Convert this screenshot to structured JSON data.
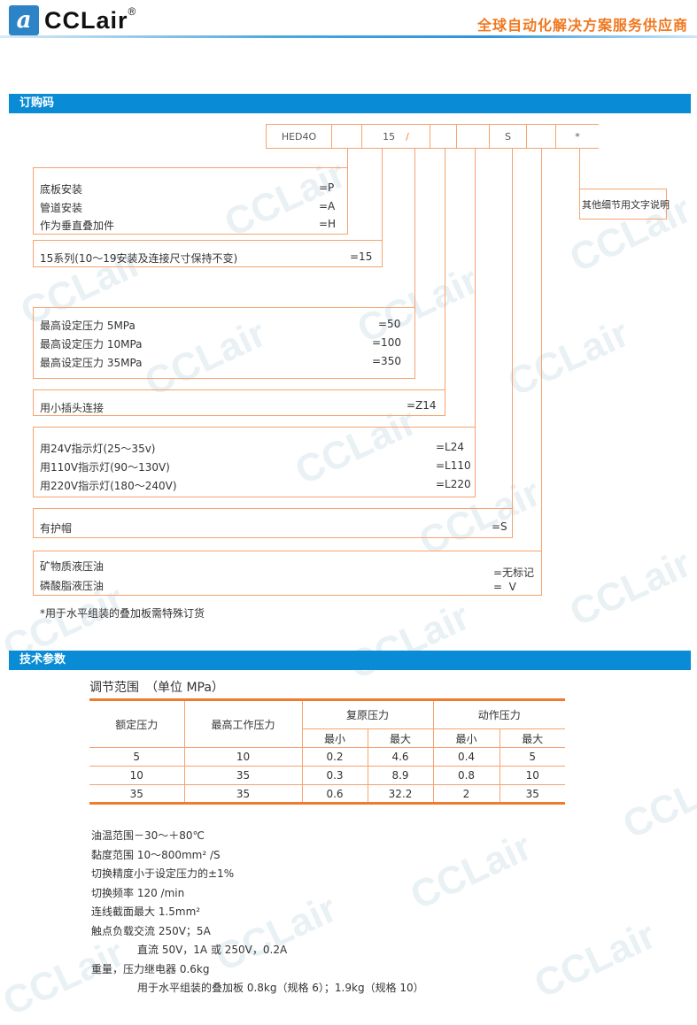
{
  "header": {
    "logo_text": "CCLair",
    "logo_mark": "a",
    "registered": "®",
    "slogan": "全球自动化解决方案服务供应商",
    "watermark": "CCLair"
  },
  "order_section": {
    "title": "订购码",
    "code_cells": [
      "HED4O",
      "",
      "15",
      "/",
      "",
      "",
      "S",
      "",
      "*"
    ],
    "other_details": "其他细节用文字说明",
    "groups": [
      {
        "items": [
          {
            "label": "底板安装",
            "code": "=P"
          },
          {
            "label": "管道安装",
            "code": "=A"
          },
          {
            "label": "作为垂直叠加件",
            "code": "=H"
          }
        ]
      },
      {
        "items": [
          {
            "label": "15系列(10～19安装及连接尺寸保持不变)",
            "code": "=15"
          }
        ]
      },
      {
        "items": [
          {
            "label": "最高设定压力 5MPa",
            "code": "=50"
          },
          {
            "label": "最高设定压力 10MPa",
            "code": "=100"
          },
          {
            "label": "最高设定压力 35MPa",
            "code": "=350"
          }
        ]
      },
      {
        "items": [
          {
            "label": "用小插头连接",
            "code": "=Z14"
          }
        ]
      },
      {
        "items": [
          {
            "label": "用24V指示灯(25～35v)",
            "code": "=L24"
          },
          {
            "label": "用110V指示灯(90～130V)",
            "code": "=L110"
          },
          {
            "label": "用220V指示灯(180～240V)",
            "code": "=L220"
          }
        ]
      },
      {
        "items": [
          {
            "label": "有护帽",
            "code": "=S"
          }
        ]
      },
      {
        "items": [
          {
            "label": "矿物质液压油",
            "code": "=无标记"
          },
          {
            "label": "磷酸脂液压油",
            "code": "=  V"
          }
        ]
      }
    ],
    "footnote": "*用于水平组装的叠加板需特殊订货"
  },
  "tech_section": {
    "title": "技术参数",
    "table_title": "调节范围　（单位 MPa）",
    "headers": {
      "rated": "额定压力",
      "max_work": "最高工作压力",
      "reset": "复原压力",
      "action": "动作压力",
      "min": "最小",
      "max": "最大"
    },
    "rows": [
      [
        "5",
        "10",
        "0.2",
        "4.6",
        "0.4",
        "5"
      ],
      [
        "10",
        "35",
        "0.3",
        "8.9",
        "0.8",
        "10"
      ],
      [
        "35",
        "35",
        "0.6",
        "32.2",
        "2",
        "35"
      ]
    ],
    "specs": [
      "油温范围－30～＋80℃",
      "黏度范围 10～800mm² /S",
      "切换精度小于设定压力的±1%",
      "切换频率 120 /min",
      "连线截面最大 1.5mm²",
      "触点负载交流 250V；5A",
      "直流 50V，1A 或 250V，0.2A",
      "重量，压力继电器 0.6kg",
      "用于水平组装的叠加板 0.8kg（规格 6）；1.9kg（规格 10）"
    ]
  }
}
